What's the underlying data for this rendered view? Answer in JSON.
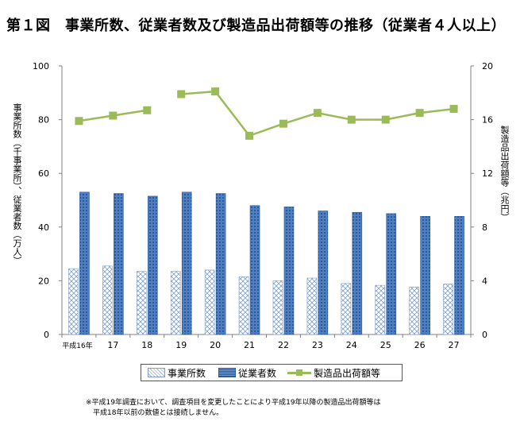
{
  "title": "第１図　事業所数、従業者数及び製造品出荷額等の推移（従業者４人以上）",
  "footnote": [
    "※平成19年調査において、調査項目を変更したことにより平成19年以降の製造品出荷額等は",
    "　平成18年以前の数値とは接続しません。"
  ],
  "colors": {
    "establishments_fill": "#ffffff",
    "establishments_pattern": "#7f9fc8",
    "employees_fill": "#4f7fc0",
    "employees_pattern": "#2c5a98",
    "shipments_line": "#9bbb59",
    "axis": "#808080"
  },
  "chart_data": {
    "type": "bar",
    "categories": [
      "平成16年",
      "17",
      "18",
      "19",
      "20",
      "21",
      "22",
      "23",
      "24",
      "25",
      "26",
      "27"
    ],
    "series": [
      {
        "name": "事業所数",
        "axis": "left",
        "type": "bar",
        "values": [
          24.5,
          25.5,
          23.5,
          23.5,
          24.0,
          21.5,
          20.0,
          21.0,
          19.0,
          18.3,
          17.7,
          18.8
        ]
      },
      {
        "name": "従業者数",
        "axis": "left",
        "type": "bar",
        "values": [
          53.0,
          52.5,
          51.5,
          53.0,
          52.5,
          48.0,
          47.5,
          46.0,
          45.5,
          45.0,
          44.0,
          44.0
        ]
      },
      {
        "name": "製造品出荷額等",
        "axis": "right",
        "type": "line",
        "values": [
          15.9,
          16.3,
          16.7,
          null,
          18.1,
          14.8,
          15.7,
          16.5,
          16.0,
          16.0,
          16.5,
          16.8
        ],
        "segment_2": [
          {
            "index": 3,
            "value": 17.9
          },
          {
            "index": 4,
            "value": 18.1
          }
        ]
      }
    ],
    "y_left": {
      "label": "事業所数（千事業所）、従業者数（万人）",
      "ylim": [
        0,
        100
      ],
      "ticks": [
        "0",
        "20",
        "40",
        "60",
        "80",
        "100"
      ]
    },
    "y_right": {
      "label": "製造品出荷額等（兆円）",
      "ylim": [
        0,
        20
      ],
      "ticks": [
        "0",
        "4",
        "8",
        "12",
        "16",
        "20"
      ]
    },
    "grid": false,
    "legend_position": "bottom"
  }
}
